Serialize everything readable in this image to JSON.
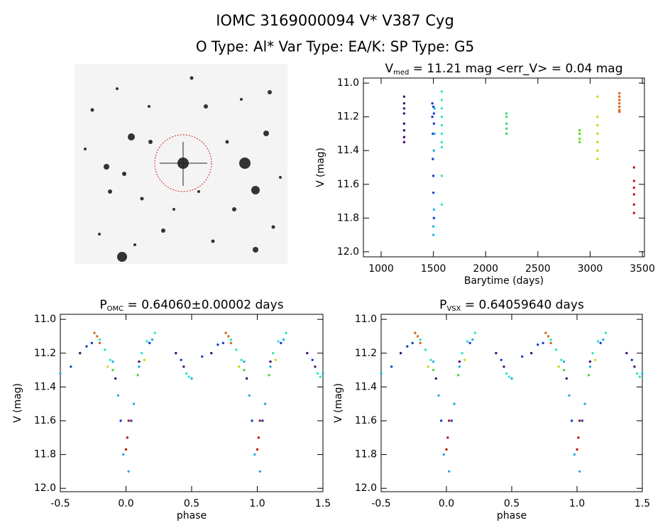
{
  "header": {
    "title": "IOMC 3169000094    V* V387 Cyg",
    "subtitle": "O Type: Al*  Var Type: EA/K:  SP Type: G5"
  },
  "chart_data": [
    {
      "type": "scatter",
      "title": {
        "main": "V",
        "sub": "med",
        "rest": " = 11.21 mag <err_V> = 0.04 mag"
      },
      "x_label": "Barytime (days)",
      "y_label": "V (mag)",
      "xlim": [
        830,
        3520
      ],
      "ylim": [
        12.03,
        10.97
      ],
      "xticks": [
        1000,
        1500,
        2000,
        2500,
        3000,
        3500
      ],
      "yticks": [
        {
          "value": 11.0,
          "label": "11.0"
        },
        11.2,
        11.4,
        11.6,
        11.8,
        {
          "value": 12.0,
          "label": "12.0"
        }
      ],
      "series": [
        {
          "color": "#401070",
          "x": [
            1220,
            1220,
            1220,
            1220,
            1220,
            1220,
            1220,
            1220
          ],
          "values": [
            11.08,
            11.12,
            11.15,
            11.18,
            11.24,
            11.28,
            11.32,
            11.35
          ]
        },
        {
          "color": "#1a3fd0",
          "x": [
            1490,
            1490,
            1495,
            1495,
            1500,
            1500,
            1500,
            1505,
            1505,
            1505
          ],
          "values": [
            11.12,
            11.2,
            11.3,
            11.45,
            11.55,
            11.65,
            11.14,
            11.18,
            11.24,
            11.8
          ]
        },
        {
          "color": "#20b0e8",
          "x": [
            1500,
            1500,
            1505,
            1505,
            1510,
            1510
          ],
          "values": [
            11.9,
            11.85,
            11.75,
            11.4,
            11.3,
            11.15
          ]
        },
        {
          "color": "#30e8c8",
          "x": [
            1580,
            1580,
            1580,
            1580,
            1580,
            1580,
            1580,
            1580,
            1580,
            1580
          ],
          "values": [
            11.05,
            11.1,
            11.15,
            11.2,
            11.25,
            11.3,
            11.35,
            11.38,
            11.55,
            11.72
          ]
        },
        {
          "color": "#40d870",
          "x": [
            2200,
            2200,
            2200,
            2200,
            2200
          ],
          "values": [
            11.18,
            11.2,
            11.24,
            11.27,
            11.3
          ]
        },
        {
          "color": "#50e020",
          "x": [
            2900,
            2900,
            2900,
            2900
          ],
          "values": [
            11.28,
            11.3,
            11.33,
            11.35
          ]
        },
        {
          "color": "#d8d020",
          "x": [
            3070,
            3070,
            3070,
            3070,
            3070,
            3070,
            3070
          ],
          "values": [
            11.08,
            11.2,
            11.25,
            11.3,
            11.35,
            11.4,
            11.45
          ]
        },
        {
          "color": "#e06010",
          "x": [
            3280,
            3280,
            3280,
            3280,
            3280,
            3280,
            3280
          ],
          "values": [
            11.06,
            11.08,
            11.1,
            11.12,
            11.14,
            11.16,
            11.17
          ]
        },
        {
          "color": "#c01818",
          "x": [
            3420,
            3420,
            3420,
            3420,
            3420,
            3420
          ],
          "values": [
            11.5,
            11.58,
            11.62,
            11.66,
            11.72,
            11.77
          ]
        }
      ]
    },
    {
      "type": "scatter",
      "title": {
        "main": "P",
        "sub": "OMC",
        "rest": " = 0.64060±0.00002 days"
      },
      "x_label": "phase",
      "y_label": "V (mag)",
      "xlim": [
        -0.5,
        1.5
      ],
      "ylim": [
        12.02,
        10.97
      ],
      "xticks": [
        -0.5,
        {
          "value": 0.0,
          "label": "0.0"
        },
        0.5,
        {
          "value": 1.0,
          "label": "1.0"
        },
        1.5
      ],
      "yticks": [
        {
          "value": 11.0,
          "label": "11.0"
        },
        11.2,
        11.4,
        11.6,
        11.8,
        {
          "value": 12.0,
          "label": "12.0"
        }
      ],
      "series": [
        {
          "color": "#1a3fd0",
          "x": [
            -0.42,
            -0.3,
            -0.26,
            -0.04,
            0.04,
            0.18,
            0.42,
            0.58,
            0.7,
            0.74,
            0.96,
            1.04,
            1.18,
            1.42
          ],
          "values": [
            11.28,
            11.16,
            11.14,
            11.6,
            11.6,
            11.14,
            11.24,
            11.22,
            11.15,
            11.14,
            11.6,
            11.6,
            11.14,
            11.24
          ]
        },
        {
          "color": "#20b0e8",
          "x": [
            -0.5,
            -0.1,
            -0.06,
            -0.02,
            0.02,
            0.06,
            0.1,
            0.2,
            0.5,
            0.9,
            0.94,
            0.98,
            1.02,
            1.06,
            1.1,
            1.2,
            1.5
          ],
          "values": [
            11.32,
            11.25,
            11.45,
            11.8,
            11.9,
            11.5,
            11.28,
            11.12,
            11.35,
            11.25,
            11.45,
            11.8,
            11.9,
            11.5,
            11.28,
            11.12,
            11.32
          ]
        },
        {
          "color": "#30e8c8",
          "x": [
            -0.2,
            -0.16,
            -0.12,
            0.12,
            0.16,
            0.22,
            0.46,
            0.48,
            0.8,
            0.84,
            0.88,
            1.12,
            1.16,
            1.22,
            1.46,
            1.48
          ],
          "values": [
            11.12,
            11.18,
            11.24,
            11.2,
            11.13,
            11.08,
            11.32,
            11.34,
            11.12,
            11.18,
            11.24,
            11.2,
            11.13,
            11.08,
            11.32,
            11.34
          ]
        },
        {
          "color": "#401070",
          "x": [
            -0.35,
            -0.08,
            0.1,
            0.38,
            0.44,
            0.65,
            0.92,
            1.1,
            1.38,
            1.44
          ],
          "values": [
            11.2,
            11.35,
            11.25,
            11.2,
            11.28,
            11.2,
            11.35,
            11.25,
            11.2,
            11.28
          ]
        },
        {
          "color": "#d07020",
          "x": [
            -0.24,
            -0.22,
            -0.2,
            0.76,
            0.78,
            0.8
          ],
          "values": [
            11.08,
            11.1,
            11.14,
            11.08,
            11.1,
            11.14
          ]
        },
        {
          "color": "#c01818",
          "x": [
            0.0,
            0.01,
            0.02,
            1.0,
            1.01,
            1.02
          ],
          "values": [
            11.77,
            11.7,
            11.6,
            11.77,
            11.7,
            11.6
          ]
        },
        {
          "color": "#d8d020",
          "x": [
            -0.14,
            0.14,
            0.86,
            1.14
          ],
          "values": [
            11.28,
            11.24,
            11.28,
            11.24
          ]
        },
        {
          "color": "#50d840",
          "x": [
            -0.1,
            0.09,
            0.9,
            1.09
          ],
          "values": [
            11.3,
            11.33,
            11.3,
            11.33
          ]
        }
      ]
    },
    {
      "type": "scatter",
      "title": {
        "main": "P",
        "sub": "VSX",
        "rest": " = 0.64059640 days"
      },
      "x_label": "phase",
      "y_label": "V (mag)",
      "xlim": [
        -0.5,
        1.5
      ],
      "ylim": [
        12.02,
        10.97
      ],
      "xticks": [
        -0.5,
        {
          "value": 0.0,
          "label": "0.0"
        },
        0.5,
        {
          "value": 1.0,
          "label": "1.0"
        },
        1.5
      ],
      "yticks": [
        {
          "value": 11.0,
          "label": "11.0"
        },
        11.2,
        11.4,
        11.6,
        11.8,
        {
          "value": 12.0,
          "label": "12.0"
        }
      ],
      "series": [
        {
          "color": "#1a3fd0",
          "x": [
            -0.42,
            -0.3,
            -0.26,
            -0.04,
            0.04,
            0.18,
            0.42,
            0.58,
            0.7,
            0.74,
            0.96,
            1.04,
            1.18,
            1.42
          ],
          "values": [
            11.28,
            11.16,
            11.14,
            11.6,
            11.6,
            11.14,
            11.24,
            11.22,
            11.15,
            11.14,
            11.6,
            11.6,
            11.14,
            11.24
          ]
        },
        {
          "color": "#20b0e8",
          "x": [
            -0.5,
            -0.1,
            -0.06,
            -0.02,
            0.02,
            0.06,
            0.1,
            0.2,
            0.5,
            0.9,
            0.94,
            0.98,
            1.02,
            1.06,
            1.1,
            1.2,
            1.5
          ],
          "values": [
            11.32,
            11.25,
            11.45,
            11.8,
            11.9,
            11.5,
            11.28,
            11.12,
            11.35,
            11.25,
            11.45,
            11.8,
            11.9,
            11.5,
            11.28,
            11.12,
            11.32
          ]
        },
        {
          "color": "#30e8c8",
          "x": [
            -0.2,
            -0.16,
            -0.12,
            0.12,
            0.16,
            0.22,
            0.46,
            0.48,
            0.8,
            0.84,
            0.88,
            1.12,
            1.16,
            1.22,
            1.46,
            1.48
          ],
          "values": [
            11.12,
            11.18,
            11.24,
            11.2,
            11.13,
            11.08,
            11.32,
            11.34,
            11.12,
            11.18,
            11.24,
            11.2,
            11.13,
            11.08,
            11.32,
            11.34
          ]
        },
        {
          "color": "#401070",
          "x": [
            -0.35,
            -0.08,
            0.1,
            0.38,
            0.44,
            0.65,
            0.92,
            1.1,
            1.38,
            1.44
          ],
          "values": [
            11.2,
            11.35,
            11.25,
            11.2,
            11.28,
            11.2,
            11.35,
            11.25,
            11.2,
            11.28
          ]
        },
        {
          "color": "#d07020",
          "x": [
            -0.24,
            -0.22,
            -0.2,
            0.76,
            0.78,
            0.8
          ],
          "values": [
            11.08,
            11.1,
            11.14,
            11.08,
            11.1,
            11.14
          ]
        },
        {
          "color": "#c01818",
          "x": [
            0.0,
            0.01,
            0.02,
            1.0,
            1.01,
            1.02
          ],
          "values": [
            11.77,
            11.7,
            11.6,
            11.77,
            11.7,
            11.6
          ]
        },
        {
          "color": "#d8d020",
          "x": [
            -0.14,
            0.14,
            0.86,
            1.14
          ],
          "values": [
            11.28,
            11.24,
            11.28,
            11.24
          ]
        },
        {
          "color": "#50d840",
          "x": [
            -0.1,
            0.09,
            0.9,
            1.09
          ],
          "values": [
            11.3,
            11.33,
            11.3,
            11.33
          ]
        }
      ]
    }
  ]
}
